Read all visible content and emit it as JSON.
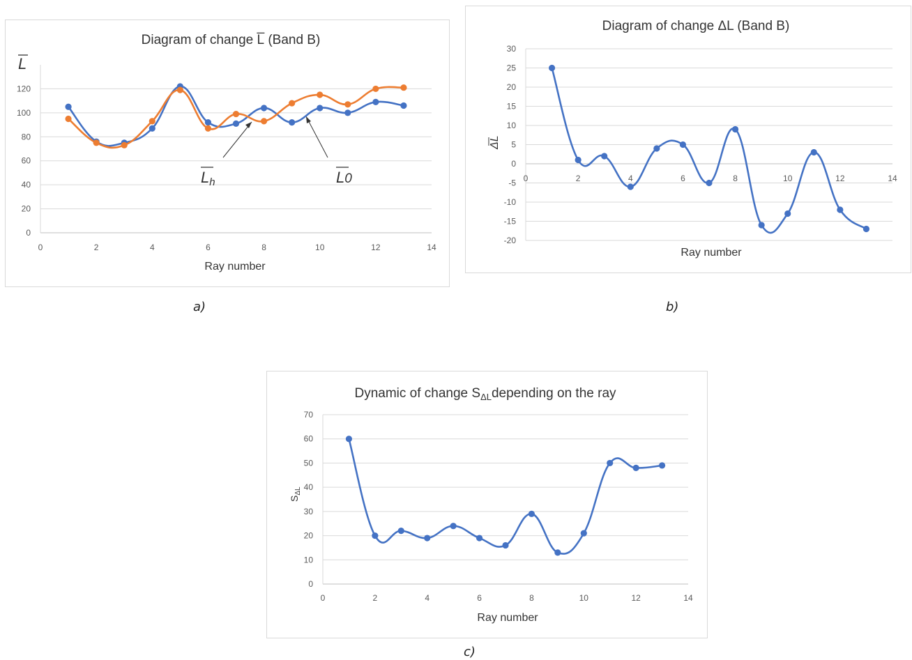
{
  "chart_data": [
    {
      "panel": "a",
      "type": "line",
      "title": "Diagram of change L̅ (Band B)",
      "xlabel": "Ray number",
      "ylabel": "L",
      "xlim": [
        0,
        14
      ],
      "ylim": [
        0,
        140
      ],
      "x_ticks": [
        0,
        2,
        4,
        6,
        8,
        10,
        12,
        14
      ],
      "y_ticks": [
        0,
        20,
        40,
        60,
        80,
        100,
        120
      ],
      "grid": true,
      "smooth": true,
      "x": [
        1,
        2,
        3,
        4,
        5,
        6,
        7,
        8,
        9,
        10,
        11,
        12,
        13
      ],
      "series": [
        {
          "values": [
            105,
            76,
            75,
            87,
            122,
            92,
            91,
            104,
            92,
            104,
            100,
            109,
            106
          ],
          "color": "#4472c4"
        },
        {
          "values": [
            95,
            75,
            73,
            93,
            119,
            87,
            99,
            93,
            108,
            115,
            107,
            120,
            121
          ],
          "color": "#ed7d31"
        }
      ],
      "annotations": [
        {
          "text": "L",
          "subscript": "h",
          "arrow_to": [
            7.7,
            96
          ]
        },
        {
          "text": "L",
          "subscript": "0",
          "arrow_to": [
            9.5,
            99
          ]
        }
      ]
    },
    {
      "panel": "b",
      "type": "line",
      "title": "Diagram of change ΔL (Band B)",
      "xlabel": "Ray number",
      "ylabel": "ΔL",
      "xlim": [
        0,
        14
      ],
      "ylim": [
        -20,
        30
      ],
      "x_ticks": [
        0,
        2,
        4,
        6,
        8,
        10,
        12,
        14
      ],
      "y_ticks": [
        30,
        25,
        20,
        15,
        10,
        5,
        0,
        -5,
        -10,
        -15,
        -20
      ],
      "grid": true,
      "smooth": true,
      "x_axis_at_zero": true,
      "x": [
        1,
        2,
        3,
        4,
        5,
        6,
        7,
        8,
        9,
        10,
        11,
        12,
        13
      ],
      "series": [
        {
          "values": [
            25,
            1,
            2,
            -6,
            4,
            5,
            -5,
            9,
            -16,
            -13,
            3,
            -12,
            -17
          ],
          "color": "#4472c4"
        }
      ]
    },
    {
      "panel": "c",
      "type": "line",
      "title": "Dynamic of change S",
      "title_sub": "ΔL",
      "title_tail": "depending on the ray",
      "xlabel": "Ray number",
      "ylabel": "S",
      "ylabel_sub": "ΔL",
      "xlim": [
        0,
        14
      ],
      "ylim": [
        0,
        70
      ],
      "x_ticks": [
        0,
        2,
        4,
        6,
        8,
        10,
        12,
        14
      ],
      "y_ticks": [
        0,
        10,
        20,
        30,
        40,
        50,
        60,
        70
      ],
      "grid": true,
      "smooth": true,
      "x": [
        1,
        2,
        3,
        4,
        5,
        6,
        7,
        8,
        9,
        10,
        11,
        12,
        13
      ],
      "series": [
        {
          "values": [
            60,
            20,
            22,
            19,
            24,
            19,
            16,
            29,
            13,
            21,
            50,
            48,
            49
          ],
          "color": "#4472c4"
        }
      ]
    }
  ],
  "captions": {
    "a": "a)",
    "b": "b)",
    "c": "c)"
  }
}
